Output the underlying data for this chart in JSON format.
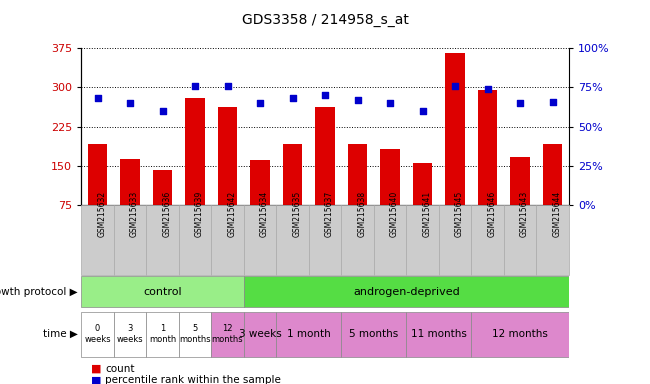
{
  "title": "GDS3358 / 214958_s_at",
  "samples": [
    "GSM215632",
    "GSM215633",
    "GSM215636",
    "GSM215639",
    "GSM215642",
    "GSM215634",
    "GSM215635",
    "GSM215637",
    "GSM215638",
    "GSM215640",
    "GSM215641",
    "GSM215645",
    "GSM215646",
    "GSM215643",
    "GSM215644"
  ],
  "counts": [
    193,
    163,
    143,
    280,
    263,
    162,
    193,
    263,
    192,
    183,
    155,
    365,
    295,
    168,
    192
  ],
  "percentiles": [
    68,
    65,
    60,
    76,
    76,
    65,
    68,
    70,
    67,
    65,
    60,
    76,
    74,
    65,
    66
  ],
  "ylim_left": [
    75,
    375
  ],
  "ylim_right": [
    0,
    100
  ],
  "yticks_left": [
    75,
    150,
    225,
    300,
    375
  ],
  "yticks_right": [
    0,
    25,
    50,
    75,
    100
  ],
  "bar_color": "#dd0000",
  "dot_color": "#0000cc",
  "grid_color": "#000000",
  "bg_color": "#ffffff",
  "plot_bg": "#ffffff",
  "sample_label_bg": "#cccccc",
  "control_color": "#99ee88",
  "androgen_color": "#55dd44",
  "time_white": "#ffffff",
  "time_pink": "#dd88cc",
  "time_control_labels": [
    "0\nweeks",
    "3\nweeks",
    "1\nmonth",
    "5\nmonths",
    "12\nmonths"
  ],
  "time_androgen_labels": [
    "3 weeks",
    "1 month",
    "5 months",
    "11 months",
    "12 months"
  ],
  "time_androgen_groups": [
    1,
    2,
    2,
    2,
    3
  ],
  "control_count": 5,
  "androgen_count": 10,
  "growth_protocol_label": "growth protocol",
  "time_label": "time",
  "legend_count": "count",
  "legend_percentile": "percentile rank within the sample",
  "title_fontsize": 10,
  "axis_label_color_left": "#cc0000",
  "axis_label_color_right": "#0000cc"
}
